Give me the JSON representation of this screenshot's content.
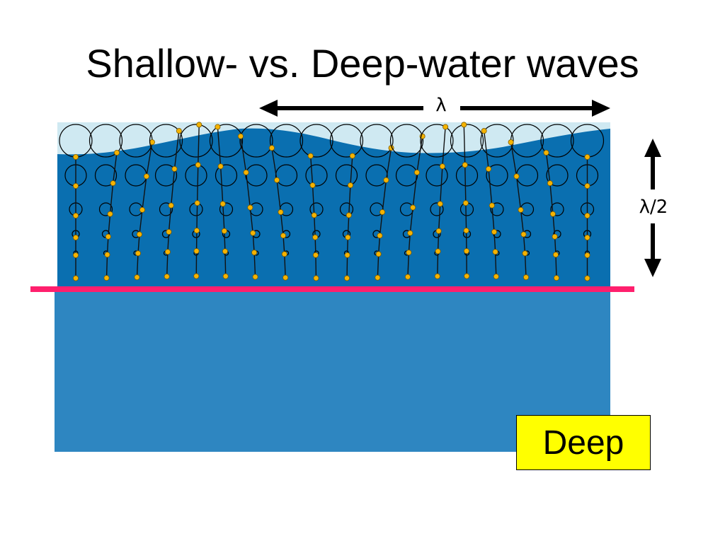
{
  "title": "Shallow- vs. Deep-water waves",
  "labels": {
    "wavelength": "λ",
    "half_wavelength": "λ/2",
    "depth_badge": "Deep"
  },
  "colors": {
    "upper_water": "#0a6fb0",
    "surface_band": "#cfe9f2",
    "lower_water": "#2e86c1",
    "depth_line": "#ff1f6d",
    "particle": "#f5b300",
    "badge": "#ffff00"
  }
}
